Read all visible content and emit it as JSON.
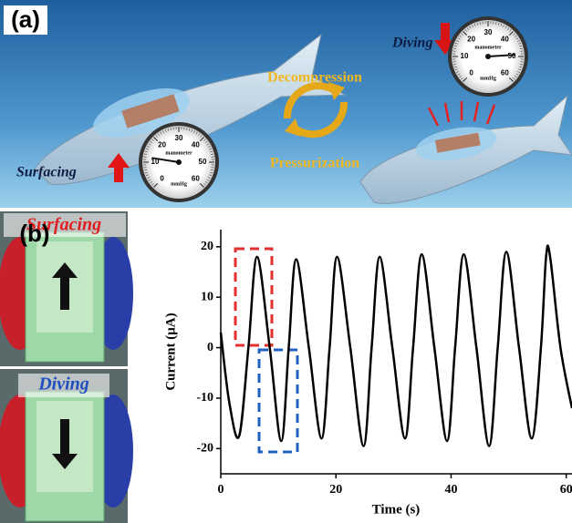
{
  "panel_a": {
    "label": "(a)",
    "diving": "Diving",
    "decompression": "Decompression",
    "pressurization": "Pressurization",
    "surfacing": "Surfacing",
    "gauge": {
      "name": "manometer",
      "unit": "mmHg",
      "scale": [
        0,
        10,
        20,
        30,
        40,
        50,
        60
      ]
    }
  },
  "panel_b": {
    "label": "(b)",
    "photo_top": "Surfacing",
    "photo_bottom": "Diving"
  },
  "chart_data": {
    "type": "line",
    "xlabel": "Time (s)",
    "ylabel": "Current (μA)",
    "color": "#000000",
    "x": [
      0,
      1.5,
      3.2,
      4.8,
      6.3,
      8.5,
      10.5,
      11.8,
      13.1,
      15.3,
      17.5,
      18.9,
      20.2,
      22.5,
      24.8,
      26.2,
      27.6,
      29.8,
      32,
      33.4,
      34.9,
      37.1,
      39.3,
      40.7,
      42.2,
      44.4,
      46.6,
      48.1,
      49.6,
      51.8,
      54,
      55.6,
      56.5,
      57.2,
      59,
      61
    ],
    "values": [
      3,
      -11,
      -17.5,
      0,
      18,
      0,
      -18.5,
      0,
      17.5,
      0,
      -18,
      0,
      18,
      0,
      -19.5,
      0,
      18,
      0,
      -18,
      0,
      18.5,
      0,
      -18.5,
      0,
      18.5,
      0,
      -19.5,
      0,
      19,
      0,
      -18,
      0,
      18,
      18,
      0,
      -12
    ],
    "xlim": [
      0,
      61
    ],
    "ylim": [
      -25,
      23.4
    ],
    "xticks": [
      0,
      20,
      40,
      60
    ],
    "yticks": [
      -20,
      -10,
      0,
      10,
      20
    ]
  }
}
